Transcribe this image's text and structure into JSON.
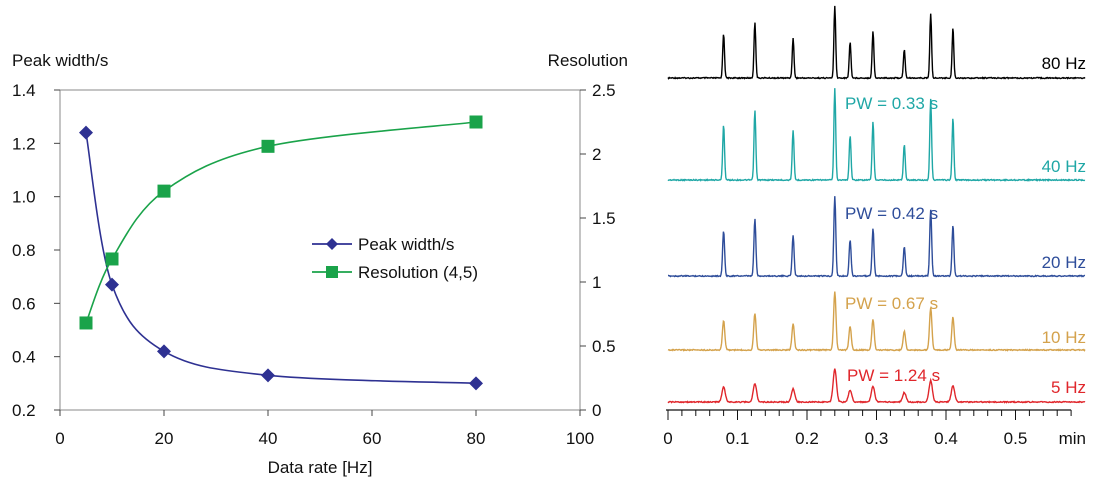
{
  "chart_data": [
    {
      "type": "line",
      "xlabel": "Data rate [Hz]",
      "ylabel": "Peak width/s",
      "y2label": "Resolution",
      "xlim": [
        0,
        100
      ],
      "ylim": [
        0.2,
        1.4
      ],
      "y2lim": [
        0,
        2.5
      ],
      "xticks": [
        "0",
        "20",
        "40",
        "60",
        "80",
        "100"
      ],
      "yticks": [
        "0.2",
        "0.4",
        "0.6",
        "0.8",
        "1.0",
        "1.2",
        "1.4"
      ],
      "y2ticks": [
        "0",
        "0.5",
        "1",
        "1.5",
        "2",
        "2.5"
      ],
      "grid": false,
      "legend_position": "center-right",
      "series": [
        {
          "name": "Peak width/s",
          "axis": "left",
          "marker": "diamond",
          "color": "#2e3192",
          "x": [
            5,
            10,
            20,
            40,
            80
          ],
          "y": [
            1.24,
            0.67,
            0.42,
            0.33,
            0.3
          ]
        },
        {
          "name": "Resolution (4,5)",
          "axis": "right",
          "marker": "square",
          "color": "#1aa34a",
          "x": [
            5,
            10,
            20,
            40,
            80
          ],
          "y": [
            0.68,
            1.18,
            1.71,
            2.06,
            2.25
          ]
        }
      ]
    },
    {
      "type": "line",
      "xlabel": "min",
      "xlim": [
        0,
        0.6
      ],
      "xticks": [
        "0",
        "0.1",
        "0.2",
        "0.3",
        "0.4",
        "0.5"
      ],
      "peak_times": [
        0.08,
        0.125,
        0.18,
        0.24,
        0.262,
        0.295,
        0.34,
        0.378,
        0.41
      ],
      "relative_heights": [
        0.62,
        0.78,
        0.55,
        1.0,
        0.5,
        0.65,
        0.4,
        0.9,
        0.7
      ],
      "traces": [
        {
          "label": "80 Hz",
          "color": "#000000",
          "peak_width_s": 0.3,
          "annotation": ""
        },
        {
          "label": "40 Hz",
          "color": "#1fa7a6",
          "peak_width_s": 0.33,
          "annotation": "PW = 0.33 s"
        },
        {
          "label": "20 Hz",
          "color": "#2e4d9a",
          "peak_width_s": 0.42,
          "annotation": "PW = 0.42 s"
        },
        {
          "label": "10 Hz",
          "color": "#d4a24c",
          "peak_width_s": 0.67,
          "annotation": "PW = 0.67 s"
        },
        {
          "label": "5 Hz",
          "color": "#e0262b",
          "peak_width_s": 1.24,
          "annotation": "PW = 1.24 s"
        }
      ]
    }
  ]
}
